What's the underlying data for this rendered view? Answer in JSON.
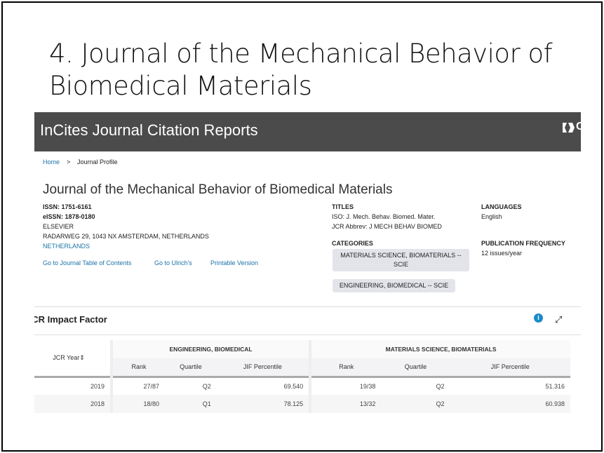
{
  "slide": {
    "title": "4. Journal of the Mechanical Behavior of Biomedical Materials"
  },
  "header": {
    "app_name": "InCites Journal Citation Reports",
    "logo_text": "C",
    "logo_sub": "A"
  },
  "breadcrumb": {
    "home": "Home",
    "sep": ">",
    "current": "Journal Profile"
  },
  "journal": {
    "title": "Journal of the Mechanical Behavior of Biomedical Materials",
    "issn": "ISSN: 1751-6161",
    "eissn": "eISSN: 1878-0180",
    "publisher": "ELSEVIER",
    "address": "RADARWEG 29, 1043 NX AMSTERDAM, NETHERLANDS",
    "country": "NETHERLANDS"
  },
  "links": {
    "toc": "Go to Journal Table of Contents",
    "ulrich": "Go to Ulrich's",
    "print": "Printable Version"
  },
  "titles": {
    "label": "TITLES",
    "iso": "ISO: J. Mech. Behav. Biomed. Mater.",
    "jcr": "JCR Abbrev: J MECH BEHAV BIOMED"
  },
  "categories": {
    "label": "CATEGORIES",
    "items": [
      "MATERIALS SCIENCE, BIOMATERIALS -- SCIE",
      "ENGINEERING, BIOMEDICAL -- SCIE"
    ]
  },
  "languages": {
    "label": "LANGUAGES",
    "value": "English"
  },
  "frequency": {
    "label": "PUBLICATION FREQUENCY",
    "value": "12 issues/year"
  },
  "impact": {
    "title": "JCR Impact Factor",
    "info": "i",
    "expand": "⤢",
    "year_header": "JCR Year",
    "sort_icon": "⇕",
    "groups": [
      "ENGINEERING, BIOMEDICAL",
      "MATERIALS SCIENCE, BIOMATERIALS"
    ],
    "cols": [
      "Rank",
      "Quartile",
      "JIF Percentile",
      "Rank",
      "Quartile",
      "JIF Percentile"
    ],
    "rows": [
      [
        "2019",
        "27/87",
        "Q2",
        "69.540",
        "19/38",
        "Q2",
        "51.316"
      ],
      [
        "2018",
        "18/80",
        "Q1",
        "78.125",
        "13/32",
        "Q2",
        "60.938"
      ]
    ]
  }
}
